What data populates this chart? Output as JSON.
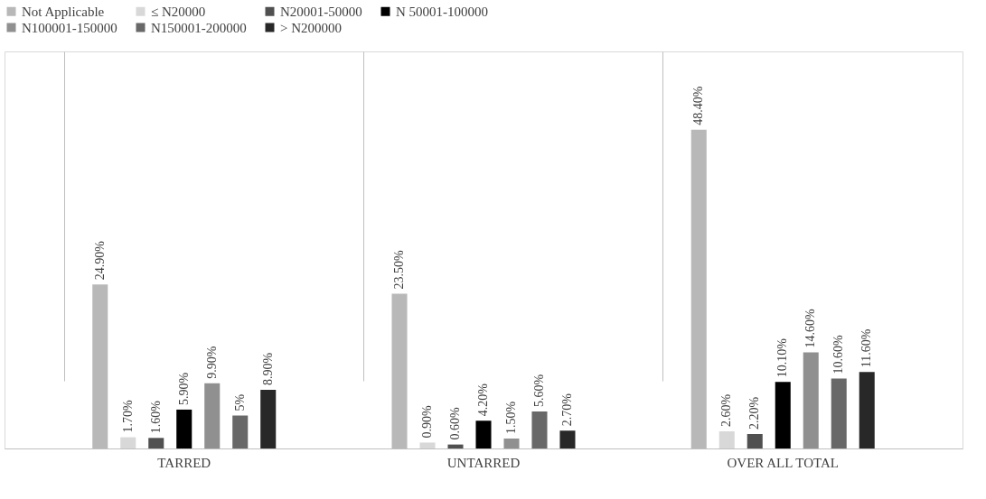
{
  "chart_data": {
    "type": "bar",
    "categories": [
      "TARRED",
      "UNTARRED",
      "OVER ALL TOTAL"
    ],
    "series": [
      {
        "name": "Not Applicable",
        "color": "#b8b8b8",
        "values": [
          24.9,
          23.5,
          48.4
        ],
        "value_labels": [
          "24.90%",
          "23.50%",
          "48.40%"
        ]
      },
      {
        "name": "≤  N20000",
        "color": "#d8d8d8",
        "values": [
          1.7,
          0.9,
          2.6
        ],
        "value_labels": [
          "1.70%",
          "0.90%",
          "2.60%"
        ]
      },
      {
        "name": "N20001-50000",
        "color": "#505050",
        "values": [
          1.6,
          0.6,
          2.2
        ],
        "value_labels": [
          "1.60%",
          "0.60%",
          "2.20%"
        ]
      },
      {
        "name": "N 50001-100000",
        "color": "#000000",
        "values": [
          5.9,
          4.2,
          10.1
        ],
        "value_labels": [
          "5.90%",
          "4.20%",
          "10.10%"
        ]
      },
      {
        "name": "N100001-150000",
        "color": "#909090",
        "values": [
          9.9,
          1.5,
          14.6
        ],
        "value_labels": [
          "9.90%",
          "1.50%",
          "14.60%"
        ]
      },
      {
        "name": "N150001-200000",
        "color": "#686868",
        "values": [
          5,
          5.6,
          10.6
        ],
        "value_labels": [
          "5%",
          "5.60%",
          "10.60%"
        ]
      },
      {
        "name": "> N200000",
        "color": "#282828",
        "values": [
          8.9,
          2.7,
          11.6
        ],
        "value_labels": [
          "8.90%",
          "2.70%",
          "11.60%"
        ]
      }
    ],
    "grid": "x",
    "legend": "top",
    "tick_labels": "x"
  }
}
